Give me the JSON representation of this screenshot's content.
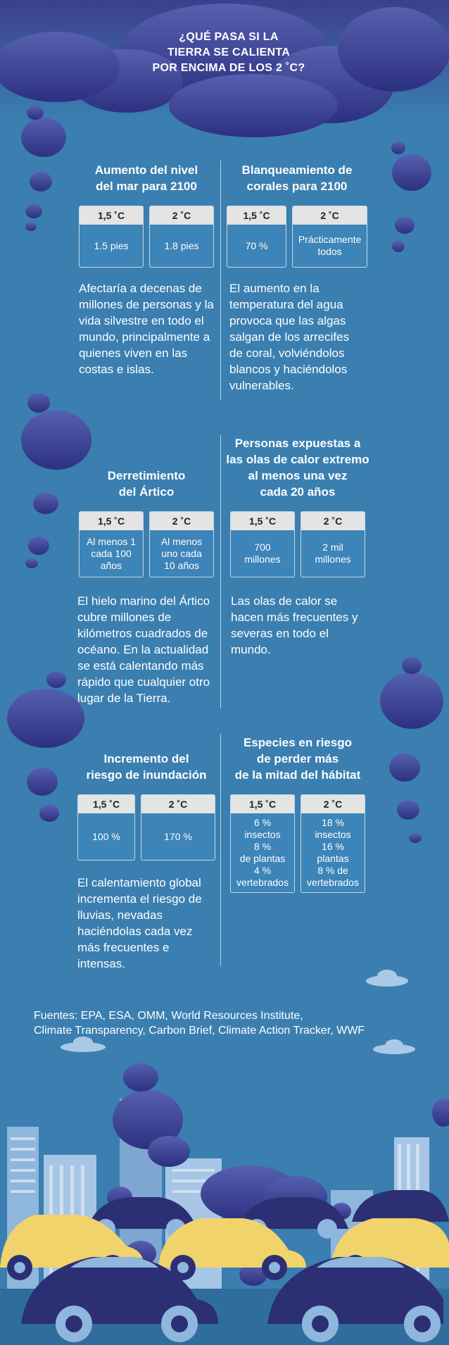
{
  "title_lines": [
    "¿QUÉ PASA SI LA",
    "TIERRA SE CALIENTA",
    "POR ENCIMA DE LOS 2 ˚C?"
  ],
  "sections": [
    {
      "title": "Aumento del nivel\ndel mar para 2100",
      "cards": [
        {
          "label": "1,5 ˚C",
          "value": "1.5 pies"
        },
        {
          "label": "2 ˚C",
          "value": "1.8 pies"
        }
      ],
      "body": "Afectaría a decenas de millones de personas y la vida silvestre en todo el mundo, principalmente a quienes viven en las costas e islas."
    },
    {
      "title": "Blanqueamiento de\ncorales para 2100",
      "cards": [
        {
          "label": "1,5 ˚C",
          "value": "70 %"
        },
        {
          "label": "2 ˚C",
          "value": "Prácticamente\ntodos"
        }
      ],
      "body": "El aumento en la temperatura del agua provoca que las algas salgan de los arrecifes de coral, volviéndolos blancos y haciéndolos vulnerables."
    },
    {
      "title": "Derretimiento\ndel Ártico",
      "cards": [
        {
          "label": "1,5 ˚C",
          "value": "Al menos 1\ncada 100\naños"
        },
        {
          "label": "2 ˚C",
          "value": "Al menos\nuno cada\n10 años"
        }
      ],
      "body": "El hielo marino del Ártico cubre millones de kilómetros cuadrados de océano. En la actualidad se está calentando más rápido que cualquier otro lugar de la Tierra."
    },
    {
      "title": "Personas expuestas a\nlas olas de calor extremo\nal menos una vez\ncada 20 años",
      "cards": [
        {
          "label": "1,5 ˚C",
          "value": "700\nmillones"
        },
        {
          "label": "2 ˚C",
          "value": "2 mil\nmillones"
        }
      ],
      "body": "Las olas de calor se hacen más frecuentes y severas en todo el mundo."
    },
    {
      "title": "Incremento del\nriesgo de inundación",
      "cards": [
        {
          "label": "1,5 ˚C",
          "value": "100 %"
        },
        {
          "label": "2 ˚C",
          "value": "170 %"
        }
      ],
      "body": "El calentamiento global incrementa el riesgo de lluvias, nevadas haciéndolas cada vez más frecuentes e intensas."
    },
    {
      "title": "Especies en riesgo\nde perder más\nde la mitad del hábitat",
      "cards": [
        {
          "label": "1,5 ˚C",
          "value": "6 %\ninsectos\n8 %\nde plantas\n4 %\nvertebrados"
        },
        {
          "label": "2 ˚C",
          "value": "18 %\ninsectos\n16 %\nplantas\n8 % de\nvertebrados"
        }
      ],
      "body": ""
    }
  ],
  "sources_lines": [
    "Fuentes: EPA, ESA, OMM, World Resources Institute,",
    "Climate Transparency, Carbon Brief, Climate Action Tracker, WWF"
  ],
  "colors": {
    "background": "#3a7fb0",
    "cloud": "#3b3f8f",
    "car_yellow": "#f1d36b",
    "car_navy": "#2c2f73",
    "building": "#8fb6dd"
  }
}
